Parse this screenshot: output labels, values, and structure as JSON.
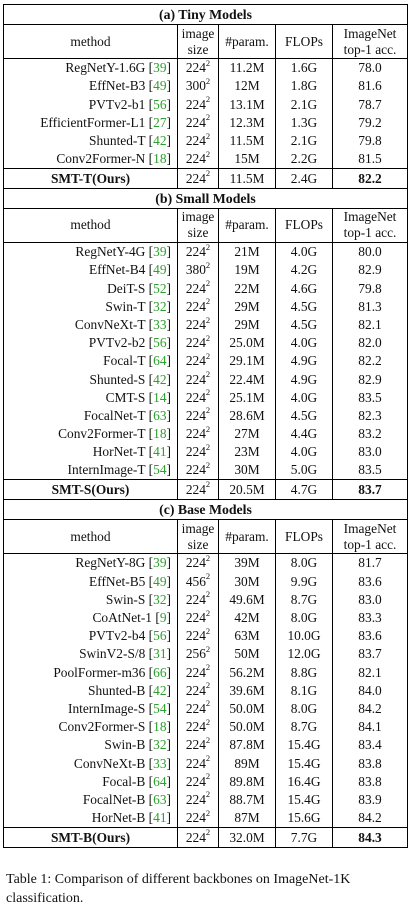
{
  "headers": {
    "method": "method",
    "image_size_1": "image",
    "image_size_2": "size",
    "params": "#param.",
    "flops": "FLOPs",
    "acc_1": "ImageNet",
    "acc_2": "top-1 acc."
  },
  "sections": [
    {
      "title": "(a) Tiny Models",
      "rows": [
        {
          "name": "RegNetY-1.6G",
          "cite": "39",
          "base": "224",
          "exp": "2",
          "params": "11.2M",
          "flops": "1.6G",
          "acc": "78.0"
        },
        {
          "name": "EffNet-B3",
          "cite": "49",
          "base": "300",
          "exp": "2",
          "params": "12M",
          "flops": "1.8G",
          "acc": "81.6"
        },
        {
          "name": "PVTv2-b1",
          "cite": "56",
          "base": "224",
          "exp": "2",
          "params": "13.1M",
          "flops": "2.1G",
          "acc": "78.7"
        },
        {
          "name": "EfficientFormer-L1",
          "cite": "27",
          "base": "224",
          "exp": "2",
          "params": "12.3M",
          "flops": "1.3G",
          "acc": "79.2"
        },
        {
          "name": "Shunted-T",
          "cite": "42",
          "base": "224",
          "exp": "2",
          "params": "11.5M",
          "flops": "2.1G",
          "acc": "79.8"
        },
        {
          "name": "Conv2Former-N",
          "cite": "18",
          "base": "224",
          "exp": "2",
          "params": "15M",
          "flops": "2.2G",
          "acc": "81.5"
        }
      ],
      "ours": {
        "name": "SMT-T(Ours)",
        "base": "224",
        "exp": "2",
        "params": "11.5M",
        "flops": "2.4G",
        "acc": "82.2"
      }
    },
    {
      "title": "(b) Small Models",
      "rows": [
        {
          "name": "RegNetY-4G",
          "cite": "39",
          "base": "224",
          "exp": "2",
          "params": "21M",
          "flops": "4.0G",
          "acc": "80.0"
        },
        {
          "name": "EffNet-B4",
          "cite": "49",
          "base": "380",
          "exp": "2",
          "params": "19M",
          "flops": "4.2G",
          "acc": "82.9"
        },
        {
          "name": "DeiT-S",
          "cite": "52",
          "base": "224",
          "exp": "2",
          "params": "22M",
          "flops": "4.6G",
          "acc": "79.8"
        },
        {
          "name": "Swin-T",
          "cite": "32",
          "base": "224",
          "exp": "2",
          "params": "29M",
          "flops": "4.5G",
          "acc": "81.3"
        },
        {
          "name": "ConvNeXt-T",
          "cite": "33",
          "base": "224",
          "exp": "2",
          "params": "29M",
          "flops": "4.5G",
          "acc": "82.1"
        },
        {
          "name": "PVTv2-b2",
          "cite": "56",
          "base": "224",
          "exp": "2",
          "params": "25.0M",
          "flops": "4.0G",
          "acc": "82.0"
        },
        {
          "name": "Focal-T",
          "cite": "64",
          "base": "224",
          "exp": "2",
          "params": "29.1M",
          "flops": "4.9G",
          "acc": "82.2"
        },
        {
          "name": "Shunted-S",
          "cite": "42",
          "base": "224",
          "exp": "2",
          "params": "22.4M",
          "flops": "4.9G",
          "acc": "82.9"
        },
        {
          "name": "CMT-S",
          "cite": "14",
          "base": "224",
          "exp": "2",
          "params": "25.1M",
          "flops": "4.0G",
          "acc": "83.5"
        },
        {
          "name": "FocalNet-T",
          "cite": "63",
          "base": "224",
          "exp": "2",
          "params": "28.6M",
          "flops": "4.5G",
          "acc": "82.3"
        },
        {
          "name": "Conv2Former-T",
          "cite": "18",
          "base": "224",
          "exp": "2",
          "params": "27M",
          "flops": "4.4G",
          "acc": "83.2"
        },
        {
          "name": "HorNet-T",
          "cite": "41",
          "base": "224",
          "exp": "2",
          "params": "23M",
          "flops": "4.0G",
          "acc": "83.0"
        },
        {
          "name": "InternImage-T",
          "cite": "54",
          "base": "224",
          "exp": "2",
          "params": "30M",
          "flops": "5.0G",
          "acc": "83.5"
        }
      ],
      "ours": {
        "name": "SMT-S(Ours)",
        "base": "224",
        "exp": "2",
        "params": "20.5M",
        "flops": "4.7G",
        "acc": "83.7"
      }
    },
    {
      "title": "(c) Base Models",
      "rows": [
        {
          "name": "RegNetY-8G",
          "cite": "39",
          "base": "224",
          "exp": "2",
          "params": "39M",
          "flops": "8.0G",
          "acc": "81.7"
        },
        {
          "name": "EffNet-B5",
          "cite": "49",
          "base": "456",
          "exp": "2",
          "params": "30M",
          "flops": "9.9G",
          "acc": "83.6"
        },
        {
          "name": "Swin-S",
          "cite": "32",
          "base": "224",
          "exp": "2",
          "params": "49.6M",
          "flops": "8.7G",
          "acc": "83.0"
        },
        {
          "name": "CoAtNet-1",
          "cite": "9",
          "base": "224",
          "exp": "2",
          "params": "42M",
          "flops": "8.0G",
          "acc": "83.3"
        },
        {
          "name": "PVTv2-b4",
          "cite": "56",
          "base": "224",
          "exp": "2",
          "params": "63M",
          "flops": "10.0G",
          "acc": "83.6"
        },
        {
          "name": "SwinV2-S/8",
          "cite": "31",
          "base": "256",
          "exp": "2",
          "params": "50M",
          "flops": "12.0G",
          "acc": "83.7"
        },
        {
          "name": "PoolFormer-m36",
          "cite": "66",
          "base": "224",
          "exp": "2",
          "params": "56.2M",
          "flops": "8.8G",
          "acc": "82.1"
        },
        {
          "name": "Shunted-B",
          "cite": "42",
          "base": "224",
          "exp": "2",
          "params": "39.6M",
          "flops": "8.1G",
          "acc": "84.0"
        },
        {
          "name": "InternImage-S",
          "cite": "54",
          "base": "224",
          "exp": "2",
          "params": "50.0M",
          "flops": "8.0G",
          "acc": "84.2"
        },
        {
          "name": "Conv2Former-S",
          "cite": "18",
          "base": "224",
          "exp": "2",
          "params": "50.0M",
          "flops": "8.7G",
          "acc": "84.1"
        },
        {
          "name": "Swin-B",
          "cite": "32",
          "base": "224",
          "exp": "2",
          "params": "87.8M",
          "flops": "15.4G",
          "acc": "83.4"
        },
        {
          "name": "ConvNeXt-B",
          "cite": "33",
          "base": "224",
          "exp": "2",
          "params": "89M",
          "flops": "15.4G",
          "acc": "83.8"
        },
        {
          "name": "Focal-B",
          "cite": "64",
          "base": "224",
          "exp": "2",
          "params": "89.8M",
          "flops": "16.4G",
          "acc": "83.8"
        },
        {
          "name": "FocalNet-B",
          "cite": "63",
          "base": "224",
          "exp": "2",
          "params": "88.7M",
          "flops": "15.4G",
          "acc": "83.9"
        },
        {
          "name": "HorNet-B",
          "cite": "41",
          "base": "224",
          "exp": "2",
          "params": "87M",
          "flops": "15.6G",
          "acc": "84.2"
        }
      ],
      "ours": {
        "name": "SMT-B(Ours)",
        "base": "224",
        "exp": "2",
        "params": "32.0M",
        "flops": "7.7G",
        "acc": "84.3"
      }
    }
  ],
  "caption": "Table 1: Comparison of different backbones on ImageNet-1K classification.",
  "colors": {
    "citation": "#2ca02c",
    "text": "#111111",
    "rule": "#000000"
  }
}
